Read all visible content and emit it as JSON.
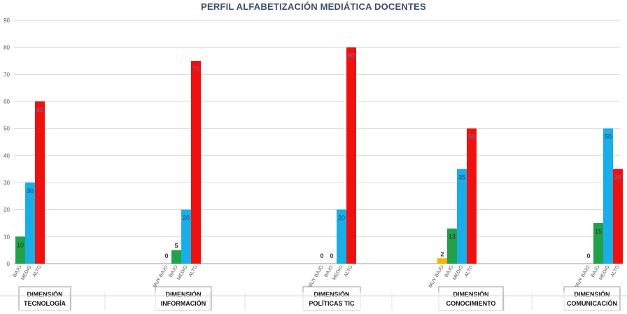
{
  "chart_data": {
    "type": "bar",
    "title": "PERFIL ALFABETIZACIÓN MEDIÁTICA DOCENTES",
    "ylim": [
      0,
      90
    ],
    "yticks": [
      0,
      10,
      20,
      30,
      40,
      50,
      60,
      70,
      80,
      90
    ],
    "grid": true,
    "level_colors": {
      "MUY BAJO": "#f7b500",
      "BAJO": "#21a24a",
      "MEDIO": "#19aee8",
      "ALTO": "#ef1010"
    },
    "groups": [
      {
        "label_line1": "DIMENSIÓN",
        "label_line2": "TECNOLOGÍA",
        "bars": [
          {
            "level": "BAJO",
            "value": 10,
            "label": "10"
          },
          {
            "level": "MEDIO",
            "value": 30,
            "label": "30"
          },
          {
            "level": "ALTO",
            "value": 60,
            "label": "60"
          }
        ]
      },
      {
        "label_line1": "DIMENSIÓN",
        "label_line2": "INFORMACIÓN",
        "bars": [
          {
            "level": "MUY BAJO",
            "value": 0,
            "label": "0"
          },
          {
            "level": "BAJO",
            "value": 5,
            "label": "5"
          },
          {
            "level": "MEDIO",
            "value": 20,
            "label": "20"
          },
          {
            "level": "ALTO",
            "value": 75,
            "label": "75"
          }
        ]
      },
      {
        "label_line1": "DIMENSIÓN",
        "label_line2": "POLÍTICAS TIC",
        "bars": [
          {
            "level": "MUY BAJO",
            "value": 0,
            "label": "0"
          },
          {
            "level": "BAJO",
            "value": 0,
            "label": "0"
          },
          {
            "level": "MEDIO",
            "value": 20,
            "label": "20"
          },
          {
            "level": "ALTO",
            "value": 80,
            "label": "80"
          }
        ]
      },
      {
        "label_line1": "DIMENSIÓN",
        "label_line2": "CONOCIMIENTO",
        "bars": [
          {
            "level": "MUY BAJO",
            "value": 2,
            "label": "2"
          },
          {
            "level": "BAJO",
            "value": 13,
            "label": "13"
          },
          {
            "level": "MEDIO",
            "value": 35,
            "label": "35"
          },
          {
            "level": "ALTO",
            "value": 50,
            "label": "50"
          }
        ]
      },
      {
        "label_line1": "DIMENSIÓN",
        "label_line2": "COMUNICACIÓN",
        "bars": [
          {
            "level": "MUY BAJO",
            "value": 0,
            "label": "0"
          },
          {
            "level": "BAJO",
            "value": 15,
            "label": "15"
          },
          {
            "level": "MEDIO",
            "value": 50,
            "label": "50"
          },
          {
            "level": "ALTO",
            "value": 35,
            "label": "35"
          }
        ]
      }
    ]
  }
}
